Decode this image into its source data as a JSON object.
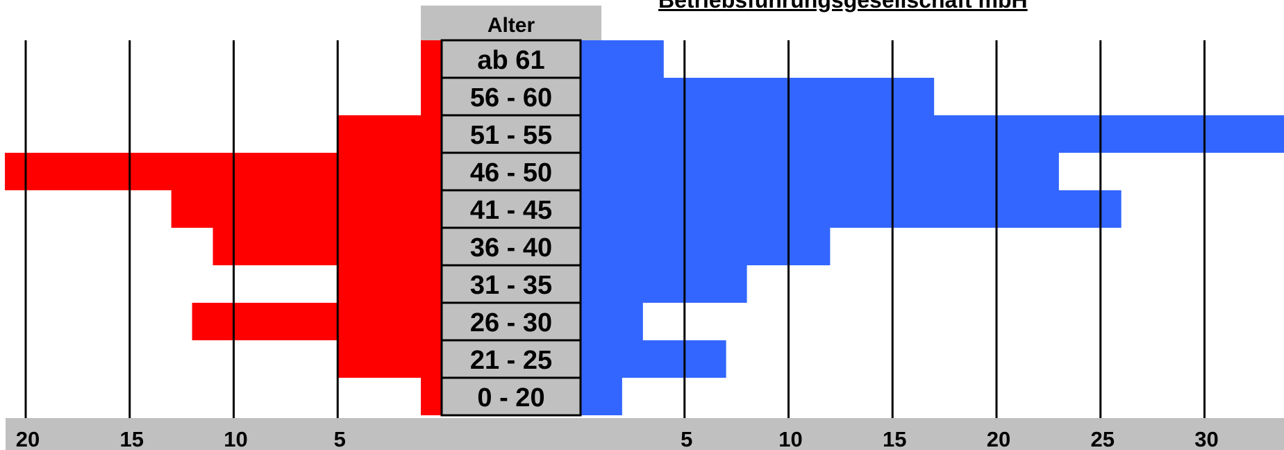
{
  "title": "Betriebsführungsgesellschaft mbH",
  "chart_data": {
    "type": "bar",
    "orientation": "horizontal",
    "layout": "population-pyramid",
    "header": "Alter",
    "categories": [
      "ab 61",
      "56 - 60",
      "51 - 55",
      "46 - 50",
      "41 - 45",
      "36 - 40",
      "31 - 35",
      "26 - 30",
      "21 - 25",
      "0 - 20"
    ],
    "series": [
      {
        "side": "left",
        "color": "#FF0000",
        "values": [
          1,
          1,
          5,
          21,
          13,
          11,
          5,
          12,
          5,
          1
        ]
      },
      {
        "side": "right",
        "color": "#3366FF",
        "values": [
          4,
          17,
          34,
          23,
          26,
          12,
          8,
          3,
          7,
          2
        ]
      }
    ],
    "left_axis": {
      "ticks": [
        20,
        15,
        10,
        5
      ],
      "range": [
        0,
        21
      ]
    },
    "right_axis": {
      "ticks": [
        5,
        10,
        15,
        20,
        25,
        30
      ],
      "range": [
        0,
        34
      ]
    },
    "grid": true,
    "colors": {
      "axis_band": "#C0C0C0",
      "label_box": "#C0C0C0",
      "grid": "#000000"
    }
  }
}
